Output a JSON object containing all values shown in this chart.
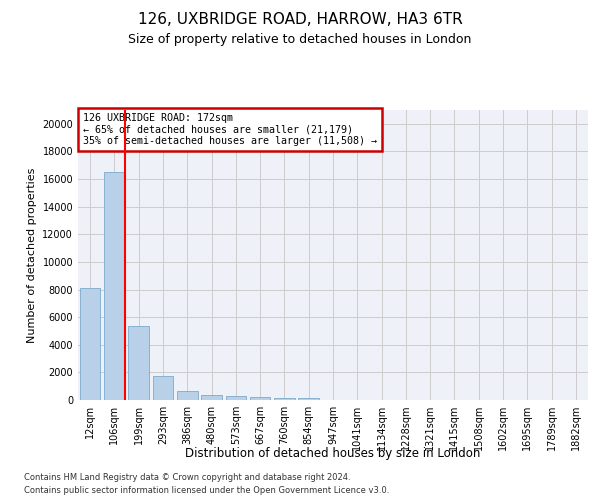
{
  "title_line1": "126, UXBRIDGE ROAD, HARROW, HA3 6TR",
  "title_line2": "Size of property relative to detached houses in London",
  "xlabel": "Distribution of detached houses by size in London",
  "ylabel": "Number of detached properties",
  "categories": [
    "12sqm",
    "106sqm",
    "199sqm",
    "293sqm",
    "386sqm",
    "480sqm",
    "573sqm",
    "667sqm",
    "760sqm",
    "854sqm",
    "947sqm",
    "1041sqm",
    "1134sqm",
    "1228sqm",
    "1321sqm",
    "1415sqm",
    "1508sqm",
    "1602sqm",
    "1695sqm",
    "1789sqm",
    "1882sqm"
  ],
  "values": [
    8100,
    16500,
    5350,
    1750,
    650,
    350,
    270,
    210,
    170,
    130,
    0,
    0,
    0,
    0,
    0,
    0,
    0,
    0,
    0,
    0,
    0
  ],
  "bar_color": "#b8d0e8",
  "bar_edge_color": "#6a9fc8",
  "annotation_box_text": "126 UXBRIDGE ROAD: 172sqm\n← 65% of detached houses are smaller (21,179)\n35% of semi-detached houses are larger (11,508) →",
  "annotation_box_color": "#ffffff",
  "annotation_box_edge_color": "#cc0000",
  "ylim": [
    0,
    21000
  ],
  "yticks": [
    0,
    2000,
    4000,
    6000,
    8000,
    10000,
    12000,
    14000,
    16000,
    18000,
    20000
  ],
  "grid_color": "#cccccc",
  "bg_color": "#eef2f8",
  "footer_line1": "Contains HM Land Registry data © Crown copyright and database right 2024.",
  "footer_line2": "Contains public sector information licensed under the Open Government Licence v3.0.",
  "title_fontsize": 11,
  "subtitle_fontsize": 9,
  "axis_label_fontsize": 8,
  "tick_fontsize": 7
}
